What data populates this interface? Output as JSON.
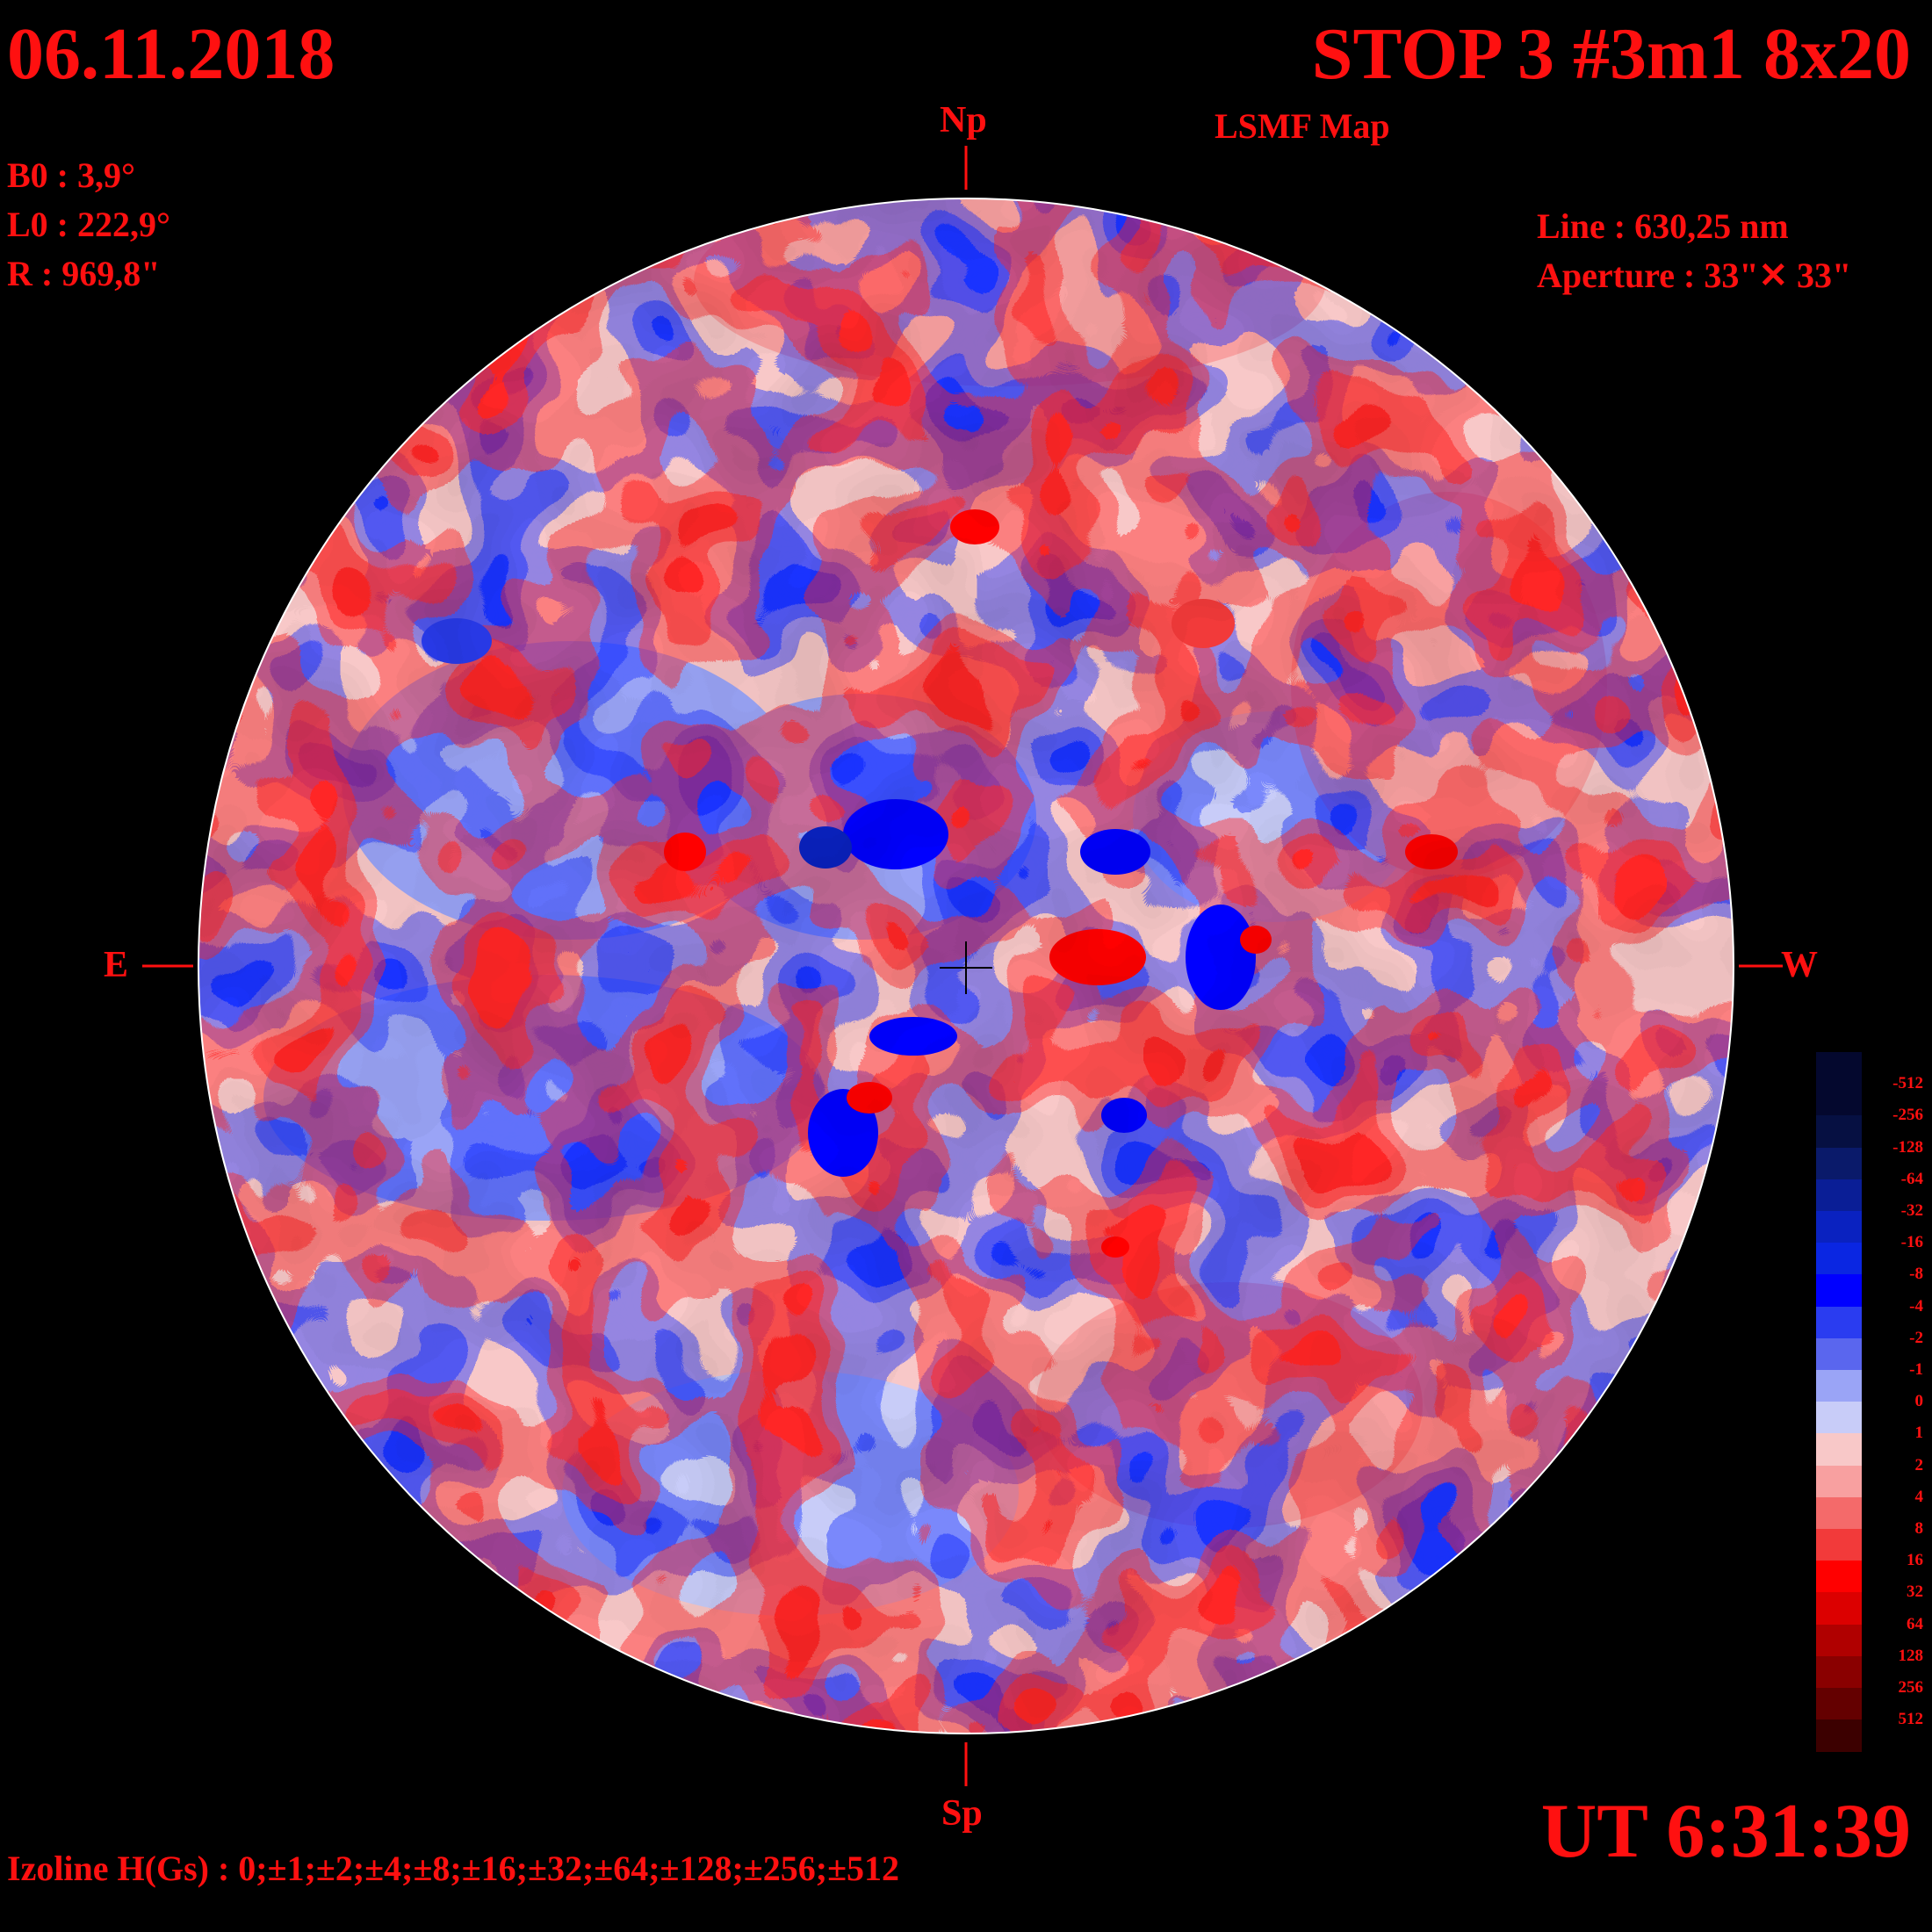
{
  "header": {
    "date": "06.11.2018",
    "title": "STOP 3 #3m1 8x20",
    "subtitle": "LSMF  Map"
  },
  "ephemeris": {
    "b0": "B0 : 3,9°",
    "l0": "L0 : 222,9°",
    "r": "R  : 969,8\""
  },
  "instrument": {
    "line": "Line :  630,25 nm",
    "aperture": "Aperture : 33\"✕ 33\""
  },
  "directions": {
    "north": "Np",
    "south": "Sp",
    "east": "E",
    "west": "W"
  },
  "footer": {
    "izoline": "Izoline H(Gs) : 0;±1;±2;±4;±8;±16;±32;±64;±128;±256;±512",
    "time": "UT 6:31:39"
  },
  "legend": {
    "labels": [
      "-512",
      "-256",
      "-128",
      "-64",
      "-32",
      "-16",
      "-8",
      "-4",
      "-2",
      "-1",
      "0",
      "1",
      "2",
      "4",
      "8",
      "16",
      "32",
      "64",
      "128",
      "256",
      "512"
    ],
    "colors": [
      "#04082e",
      "#061042",
      "#0a1a6a",
      "#0a1e96",
      "#0a22c0",
      "#0a26e2",
      "#0000ff",
      "#2a3cf0",
      "#5a66ee",
      "#9aa4f6",
      "#c8ccf8",
      "#f8c8c8",
      "#f8a0a0",
      "#f46a6a",
      "#f23a3a",
      "#ff0000",
      "#dc0000",
      "#b00000",
      "#8a0000",
      "#640000",
      "#3c0000"
    ]
  },
  "colors": {
    "text": "#ff1010",
    "background": "#000000",
    "isoline": "#ffffff"
  }
}
